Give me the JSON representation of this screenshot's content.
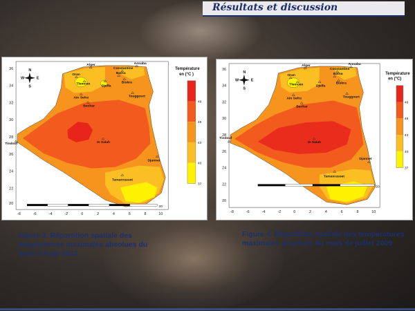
{
  "header": {
    "title": "Résultats  et  discussion"
  },
  "maps": [
    {
      "id": "map1",
      "legend_title": "Température en (°C )",
      "legend_ticks": [
        "49",
        "46",
        "43",
        "40",
        "37"
      ],
      "cities": [
        "Alger",
        "Annaba",
        "Oran",
        "Constantine",
        "Tlemcen",
        "Batna",
        "Djelfa",
        "Biskra",
        "Ain Sefra",
        "Touggourt",
        "Bechar",
        "In Salah",
        "Tindouf",
        "Tamanrasset",
        "Djannet"
      ],
      "y_ticks": [
        "36",
        "34",
        "32",
        "30",
        "28",
        "26",
        "24",
        "22",
        "20"
      ],
      "x_ticks": [
        "-8",
        "-6",
        "-4",
        "-2",
        "0",
        "2",
        "4",
        "6",
        "8",
        "10"
      ],
      "scale_label": "20",
      "caption": "Figure 3. Répartition spatiale des températures maximales absolues du mois d'Août 2012"
    },
    {
      "id": "map2",
      "legend_title": "Température en (°C)",
      "legend_ticks": [
        "49",
        "46",
        "43",
        "40",
        "37"
      ],
      "cities": [
        "Alger",
        "Annaba",
        "Oran",
        "Constantine",
        "Tlemcen",
        "Batna",
        "Djelfa",
        "Biskra",
        "Ain Sefra",
        "Touggourt",
        "Bechar",
        "In Salah",
        "Tindouf",
        "Tamanrasset",
        "Djannet"
      ],
      "y_ticks": [
        "36",
        "34",
        "32",
        "30",
        "28",
        "26",
        "24",
        "22",
        "20"
      ],
      "x_ticks": [
        "-8",
        "-6",
        "-4",
        "-2",
        "0",
        "2",
        "4",
        "6",
        "8",
        "10"
      ],
      "scale_label": "20",
      "caption": "Figure 4. Répartition spatiale des températures maximales absolues du mois de juillet  2009"
    }
  ],
  "colors": {
    "c49": "#e8251b",
    "c46": "#f25a1e",
    "c43": "#f7941d",
    "c40": "#fbbf24",
    "c37": "#fff200",
    "header_text": "#1e2f6a",
    "caption_text": "#1e2f6a"
  },
  "compass": {
    "n": "N",
    "s": "S",
    "e": "E",
    "w": "W"
  }
}
